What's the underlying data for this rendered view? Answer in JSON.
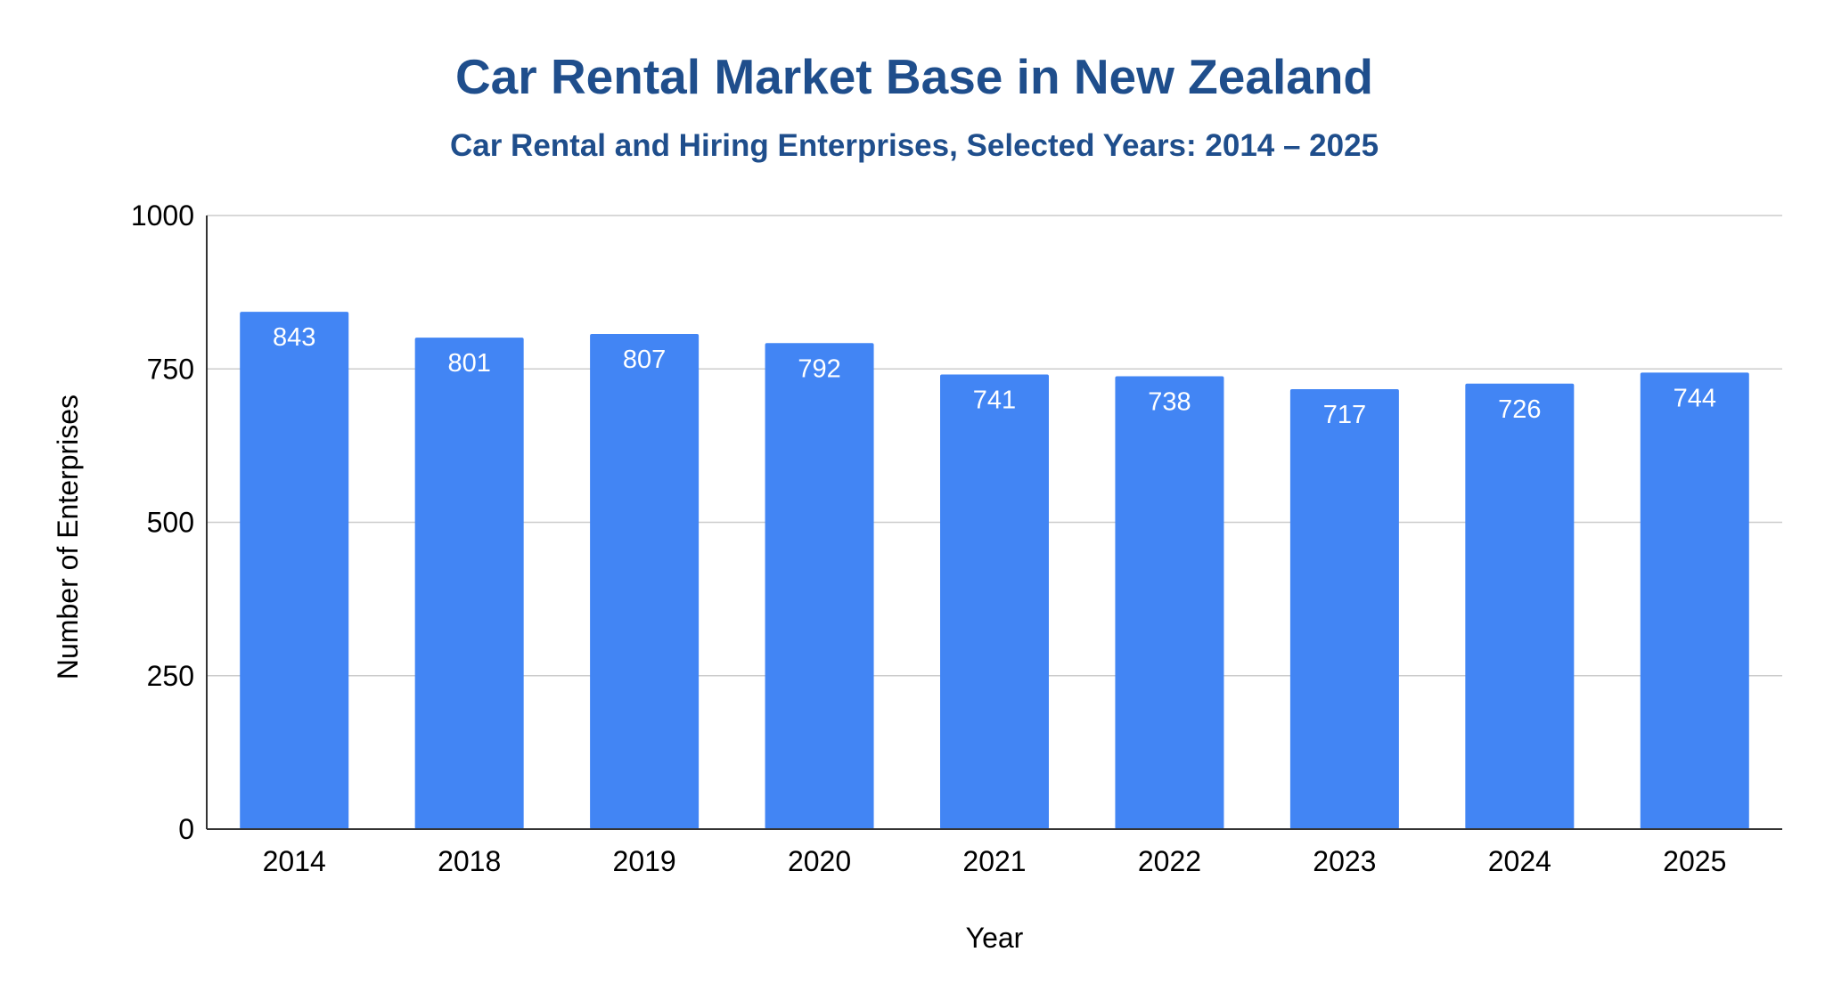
{
  "chart_data": {
    "type": "bar",
    "title": "Car Rental Market Base in New Zealand",
    "subtitle": "Car Rental and Hiring Enterprises, Selected Years: 2014 – 2025",
    "xlabel": "Year",
    "ylabel": "Number of Enterprises",
    "categories": [
      "2014",
      "2018",
      "2019",
      "2020",
      "2021",
      "2022",
      "2023",
      "2024",
      "2025"
    ],
    "values": [
      843,
      801,
      807,
      792,
      741,
      738,
      717,
      726,
      744
    ],
    "ylim": [
      0,
      1000
    ],
    "yticks": [
      0,
      250,
      500,
      750,
      1000
    ],
    "grid": true,
    "data_labels": true,
    "legend": "none",
    "bar_color": "#4285f4",
    "title_color": "#1f4e8c"
  }
}
